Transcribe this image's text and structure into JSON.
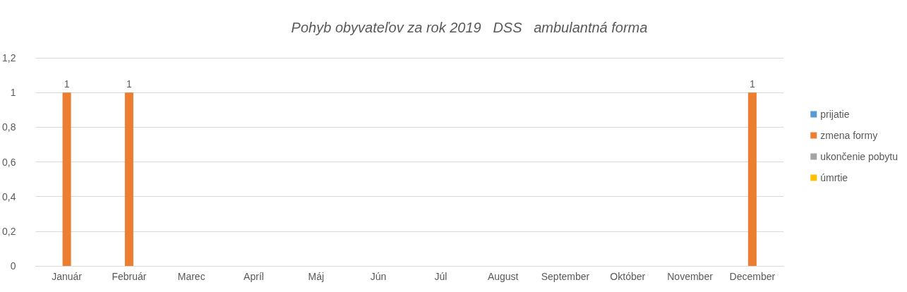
{
  "chart_data": {
    "type": "bar",
    "title": "Pohyb obyvateľov za rok 2019   DSS   ambulantná forma",
    "categories": [
      "Január",
      "Február",
      "Marec",
      "Apríl",
      "Máj",
      "Jún",
      "Júl",
      "August",
      "September",
      "Október",
      "November",
      "December"
    ],
    "series": [
      {
        "name": "prijatie",
        "color": "#5b9bd5",
        "values": [
          null,
          null,
          null,
          null,
          null,
          null,
          null,
          null,
          null,
          null,
          null,
          null
        ]
      },
      {
        "name": "zmena formy",
        "color": "#ed7d31",
        "values": [
          1,
          1,
          null,
          null,
          null,
          null,
          null,
          null,
          null,
          null,
          null,
          1
        ],
        "value_labels": [
          "1",
          "1",
          null,
          null,
          null,
          null,
          null,
          null,
          null,
          null,
          null,
          "1"
        ]
      },
      {
        "name": "ukončenie pobytu",
        "color": "#a5a5a5",
        "values": [
          null,
          null,
          null,
          null,
          null,
          null,
          null,
          null,
          null,
          null,
          null,
          null
        ]
      },
      {
        "name": "úmrtie",
        "color": "#ffc000",
        "values": [
          null,
          null,
          null,
          null,
          null,
          null,
          null,
          null,
          null,
          null,
          null,
          null
        ]
      }
    ],
    "ylim": [
      0,
      1.2
    ],
    "yticks": [
      0,
      {
        "value": 0.2,
        "label": "0,2"
      },
      {
        "value": 0.4,
        "label": "0,4"
      },
      {
        "value": 0.6,
        "label": "0,6"
      },
      {
        "value": 0.8,
        "label": "0,8"
      },
      1,
      {
        "value": 1.2,
        "label": "1,2"
      }
    ],
    "grid": "y",
    "legend": "right"
  }
}
